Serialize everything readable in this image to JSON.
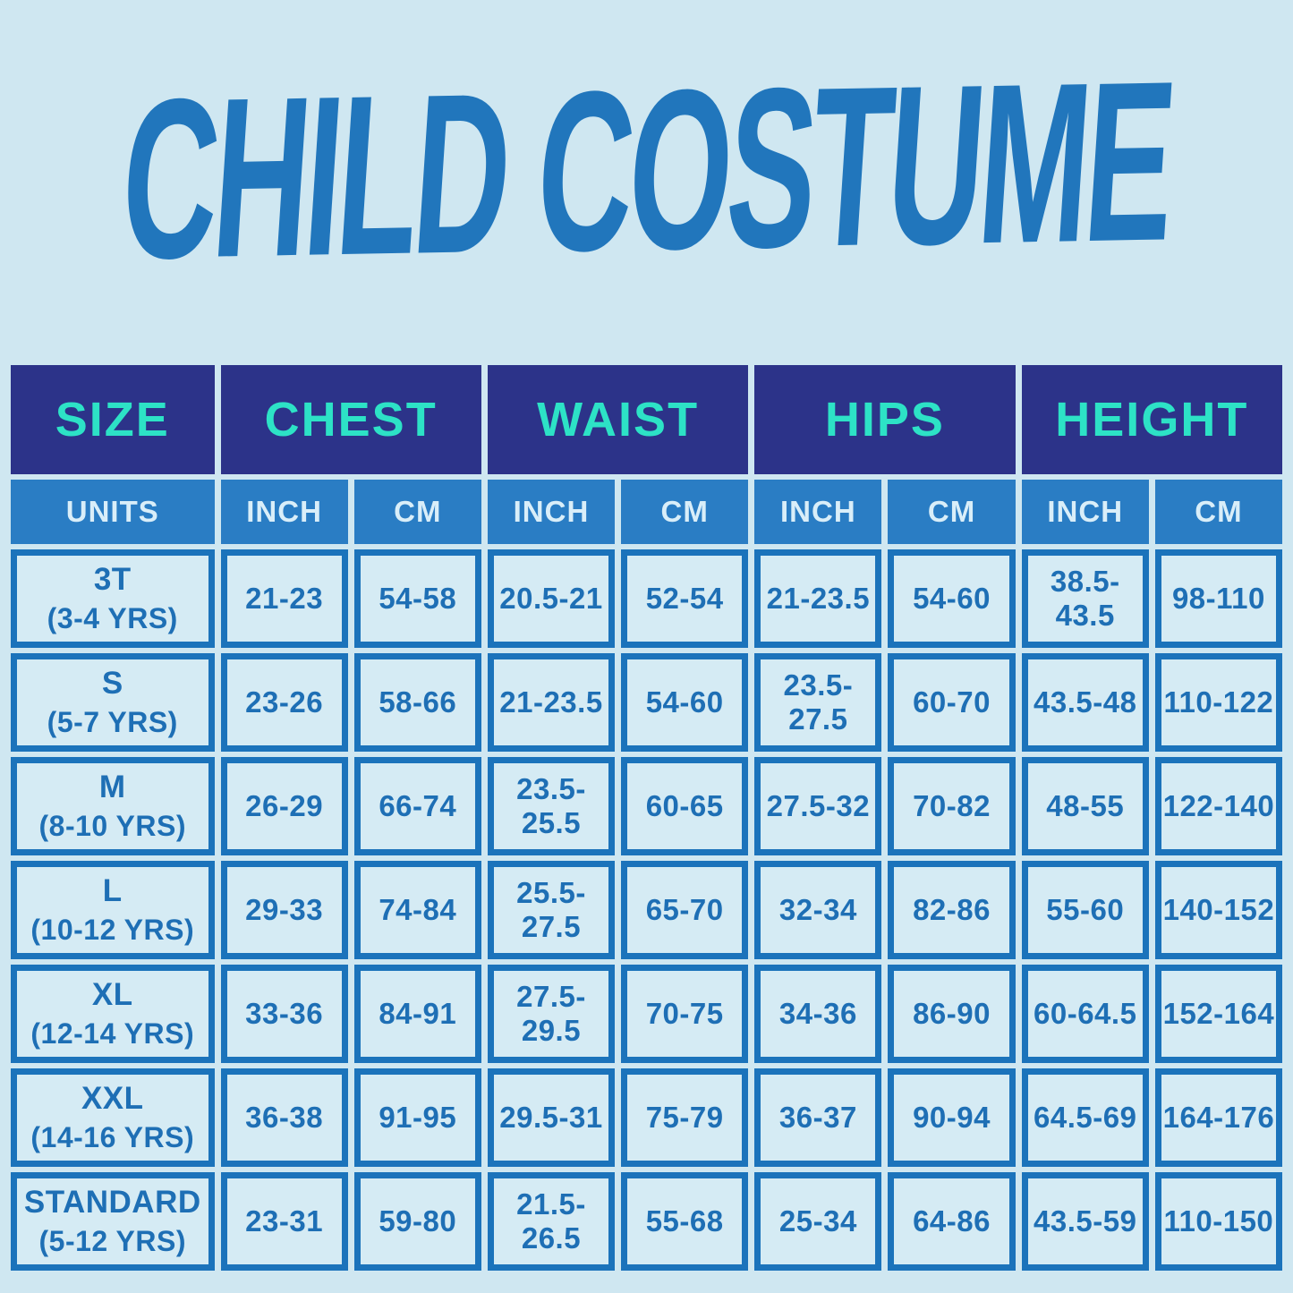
{
  "title": "CHILD COSTUME",
  "colors": {
    "page_background": "#cfe7f1",
    "title_blue": "#2176bc",
    "header_navy": "#2c3389",
    "header_teal_text": "#2de2c6",
    "units_blue": "#2a7dc4",
    "units_text": "#d9eef9",
    "cell_border_blue": "#1b73bb",
    "cell_text_blue": "#1e6fb5",
    "cell_background": "#d5ebf4"
  },
  "table": {
    "groups": [
      {
        "label": "SIZE"
      },
      {
        "label": "CHEST"
      },
      {
        "label": "WAIST"
      },
      {
        "label": "HIPS"
      },
      {
        "label": "HEIGHT"
      }
    ],
    "units_row": [
      "UNITS",
      "INCH",
      "CM",
      "INCH",
      "CM",
      "INCH",
      "CM",
      "INCH",
      "CM"
    ],
    "rows": [
      {
        "size": "3T",
        "age": "(3-4 YRS)",
        "values": [
          "21-23",
          "54-58",
          "20.5-21",
          "52-54",
          "21-23.5",
          "54-60",
          "38.5-43.5",
          "98-110"
        ]
      },
      {
        "size": "S",
        "age": "(5-7 YRS)",
        "values": [
          "23-26",
          "58-66",
          "21-23.5",
          "54-60",
          "23.5-27.5",
          "60-70",
          "43.5-48",
          "110-122"
        ]
      },
      {
        "size": "M",
        "age": "(8-10 YRS)",
        "values": [
          "26-29",
          "66-74",
          "23.5-25.5",
          "60-65",
          "27.5-32",
          "70-82",
          "48-55",
          "122-140"
        ]
      },
      {
        "size": "L",
        "age": "(10-12 YRS)",
        "values": [
          "29-33",
          "74-84",
          "25.5-27.5",
          "65-70",
          "32-34",
          "82-86",
          "55-60",
          "140-152"
        ]
      },
      {
        "size": "XL",
        "age": "(12-14 YRS)",
        "values": [
          "33-36",
          "84-91",
          "27.5-29.5",
          "70-75",
          "34-36",
          "86-90",
          "60-64.5",
          "152-164"
        ]
      },
      {
        "size": "XXL",
        "age": "(14-16 YRS)",
        "values": [
          "36-38",
          "91-95",
          "29.5-31",
          "75-79",
          "36-37",
          "90-94",
          "64.5-69",
          "164-176"
        ]
      },
      {
        "size": "STANDARD",
        "age": "(5-12 YRS)",
        "values": [
          "23-31",
          "59-80",
          "21.5-26.5",
          "55-68",
          "25-34",
          "64-86",
          "43.5-59",
          "110-150"
        ]
      }
    ]
  }
}
